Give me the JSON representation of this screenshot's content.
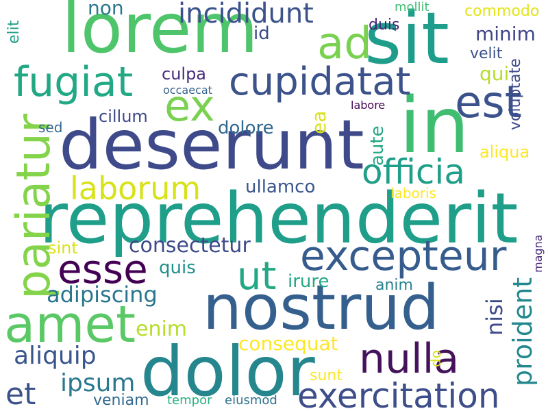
{
  "words": [
    {
      "text": "lorem",
      "color": "#4ec46b"
    },
    {
      "text": "sit",
      "color": "#1e9d8a"
    },
    {
      "text": "in",
      "color": "#3fbd71"
    },
    {
      "text": "deserunt",
      "color": "#3e4a89"
    },
    {
      "text": "reprehenderit",
      "color": "#1f9e89"
    },
    {
      "text": "nostrud",
      "color": "#355f8d"
    },
    {
      "text": "dolor",
      "color": "#25868e"
    },
    {
      "text": "amet",
      "color": "#5ac864"
    },
    {
      "text": "pariatur",
      "color": "#84d44b"
    },
    {
      "text": "fugiat",
      "color": "#22a884"
    },
    {
      "text": "ad",
      "color": "#7ad151"
    },
    {
      "text": "cupidatat",
      "color": "#3b528b"
    },
    {
      "text": "ex",
      "color": "#7ad151"
    },
    {
      "text": "est",
      "color": "#3b528b"
    },
    {
      "text": "incididunt",
      "color": "#3b528b"
    },
    {
      "text": "officia",
      "color": "#1f9e89"
    },
    {
      "text": "laborum",
      "color": "#d8e219"
    },
    {
      "text": "excepteur",
      "color": "#365c8d"
    },
    {
      "text": "esse",
      "color": "#440154"
    },
    {
      "text": "ut",
      "color": "#22a884"
    },
    {
      "text": "nulla",
      "color": "#45135c"
    },
    {
      "text": "exercitation",
      "color": "#3d4e8a"
    },
    {
      "text": "proident",
      "color": "#23888e"
    },
    {
      "text": "aliquip",
      "color": "#39568c"
    },
    {
      "text": "et",
      "color": "#3b528b"
    },
    {
      "text": "ipsum",
      "color": "#2a788e"
    },
    {
      "text": "consectetur",
      "color": "#3e4a89"
    },
    {
      "text": "adipiscing",
      "color": "#2a768e"
    },
    {
      "text": "consequat",
      "color": "#fde725"
    },
    {
      "text": "enim",
      "color": "#b5de2b"
    },
    {
      "text": "nisi",
      "color": "#3e4a89"
    },
    {
      "text": "minim",
      "color": "#404688"
    },
    {
      "text": "ullamco",
      "color": "#39568c"
    },
    {
      "text": "aute",
      "color": "#22a884"
    },
    {
      "text": "dolore",
      "color": "#31688e"
    },
    {
      "text": "ea",
      "color": "#d8e219"
    },
    {
      "text": "qui",
      "color": "#b5de2b"
    },
    {
      "text": "cillum",
      "color": "#3e4a89"
    },
    {
      "text": "culpa",
      "color": "#472d7b"
    },
    {
      "text": "id",
      "color": "#3e4a89"
    },
    {
      "text": "non",
      "color": "#2a788e"
    },
    {
      "text": "duis",
      "color": "#482475"
    },
    {
      "text": "velit",
      "color": "#3b528b"
    },
    {
      "text": "voluptate",
      "color": "#3e4a89"
    },
    {
      "text": "aliqua",
      "color": "#fde725"
    },
    {
      "text": "laboris",
      "color": "#fde725"
    },
    {
      "text": "magna",
      "color": "#482878"
    },
    {
      "text": "anim",
      "color": "#26828e"
    },
    {
      "text": "irure",
      "color": "#22a884"
    },
    {
      "text": "quis",
      "color": "#21918c"
    },
    {
      "text": "sint",
      "color": "#d8e219"
    },
    {
      "text": "sed",
      "color": "#31688e"
    },
    {
      "text": "elit",
      "color": "#1fa088"
    },
    {
      "text": "commodo",
      "color": "#e2e418"
    },
    {
      "text": "mollit",
      "color": "#3fbc73"
    },
    {
      "text": "occaecat",
      "color": "#34618d"
    },
    {
      "text": "labore",
      "color": "#440154"
    },
    {
      "text": "do",
      "color": "#d8e219"
    },
    {
      "text": "sunt",
      "color": "#fde725"
    },
    {
      "text": "veniam",
      "color": "#31688e"
    },
    {
      "text": "tempor",
      "color": "#29af7f"
    },
    {
      "text": "eiusmod",
      "color": "#2c728e"
    }
  ]
}
